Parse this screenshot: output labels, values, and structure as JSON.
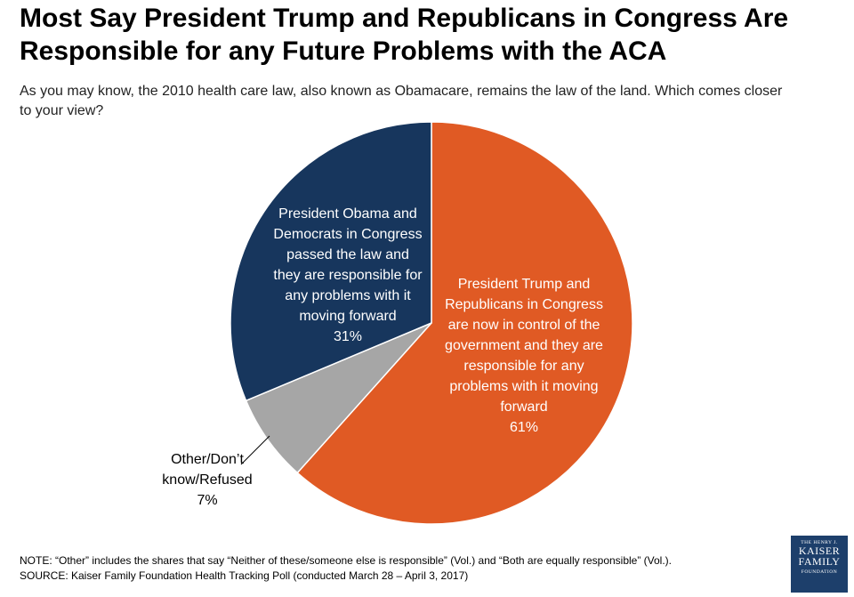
{
  "title_line1": "Most Say President Trump and Republicans in Congress Are",
  "title_line2": "Responsible for any Future Problems with the ACA",
  "subtitle_line1": "As you may know, the 2010 health care law, also known as Obamacare, remains the law of the land. Which comes closer",
  "subtitle_line2": "to your view?",
  "chart_data": {
    "type": "pie",
    "title": "Most Say President Trump and Republicans in Congress Are Responsible for any Future Problems with the ACA",
    "slices": [
      {
        "label_lines": [
          "President Trump and",
          "Republicans in Congress",
          "are now in control of the",
          "government and they are",
          "responsible for any",
          "problems with it moving",
          "forward"
        ],
        "value": 61,
        "value_label": "61%",
        "color": "#e05a24"
      },
      {
        "label_lines": [
          "Other/Don’t",
          "know/Refused"
        ],
        "value": 7,
        "value_label": "7%",
        "color": "#a6a6a6"
      },
      {
        "label_lines": [
          "President Obama and",
          "Democrats in Congress",
          "passed the law and",
          "they are responsible for",
          "any problems with it",
          "moving forward"
        ],
        "value": 31,
        "value_label": "31%",
        "color": "#17365d"
      }
    ],
    "start_angle": "12 o'clock",
    "direction": "clockwise"
  },
  "footer": {
    "note": "NOTE: “Other” includes the shares that say “Neither of these/someone else is responsible” (Vol.) and “Both are equally responsible” (Vol.).",
    "source": "SOURCE: Kaiser Family Foundation Health Tracking Poll (conducted March 28 – April 3, 2017)"
  },
  "logo": {
    "line1": "THE HENRY J.",
    "line2": "KAISER",
    "line3": "FAMILY",
    "line4": "FOUNDATION"
  }
}
